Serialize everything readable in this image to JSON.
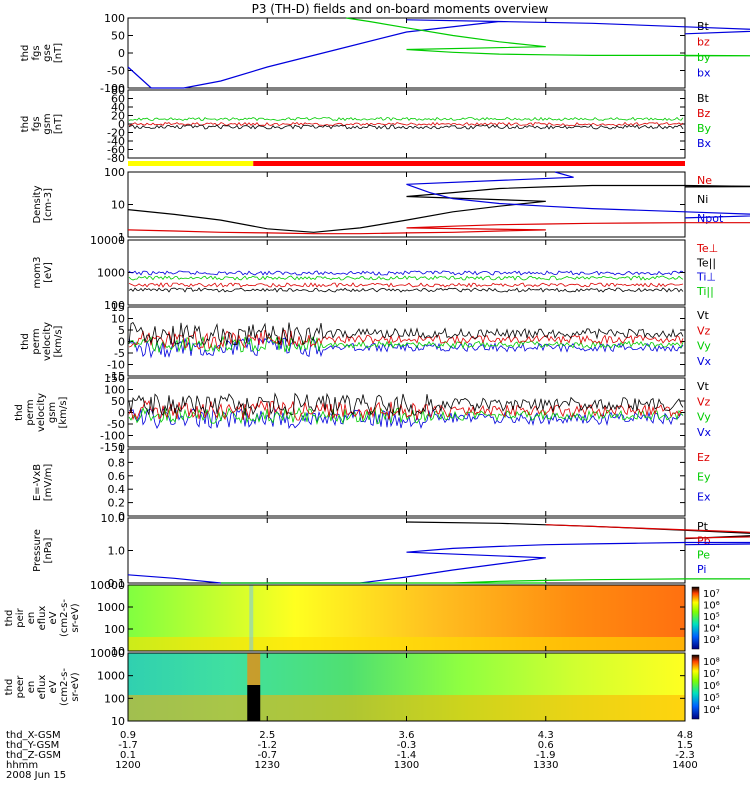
{
  "title": "P3 (TH-D) fields and on-board moments overview",
  "chart_data": [
    {
      "type": "line",
      "panel": "fgs-gse",
      "ylabel": [
        "thd",
        "fgs",
        "gse",
        "[nT]"
      ],
      "ylim": [
        -100,
        100
      ],
      "yticks": [
        100,
        50,
        0,
        -50,
        -100
      ],
      "legend": [
        {
          "name": "Bt",
          "color": "#000000"
        },
        {
          "name": "bz",
          "color": "#dd0000"
        },
        {
          "name": "by",
          "color": "#00cc00"
        },
        {
          "name": "bx",
          "color": "#0000dd"
        }
      ],
      "series": [
        {
          "name": "bx",
          "color": "#0000dd",
          "x": [
            1200,
            1205,
            1212,
            1220,
            1230,
            1245,
            1260,
            1280,
            1300,
            1320,
            1340,
            1360,
            1380,
            1400
          ],
          "y": [
            -40,
            -100,
            -100,
            -80,
            -40,
            10,
            60,
            90,
            95,
            90,
            85,
            75,
            65,
            55
          ]
        },
        {
          "name": "by",
          "color": "#00cc00",
          "x": [
            1247,
            1252,
            1260,
            1270,
            1280,
            1290,
            1300,
            1310,
            1320,
            1330,
            1340,
            1360,
            1380,
            1400
          ],
          "y": [
            100,
            90,
            72,
            50,
            32,
            18,
            10,
            2,
            -3,
            -5,
            -7,
            -7,
            -8,
            -8
          ]
        }
      ]
    },
    {
      "type": "line",
      "panel": "fgs-gsm",
      "ylabel": [
        "thd",
        "fgs",
        "gsm",
        "[nT]"
      ],
      "ylim": [
        -80,
        80
      ],
      "yticks": [
        80,
        60,
        40,
        20,
        0,
        -20,
        -40,
        -60,
        -80
      ],
      "legend": [
        {
          "name": "Bt",
          "color": "#000000"
        },
        {
          "name": "Bz",
          "color": "#dd0000"
        },
        {
          "name": "By",
          "color": "#00cc00"
        },
        {
          "name": "Bx",
          "color": "#0000dd"
        }
      ]
    },
    {
      "type": "line",
      "panel": "density",
      "ylabel": [
        "Density",
        "[cm-3]"
      ],
      "scale": "log",
      "yticks": [
        "100",
        "10",
        "1"
      ],
      "legend": [
        {
          "name": "Ne",
          "color": "#dd0000"
        },
        {
          "name": "Ni",
          "color": "#000000"
        },
        {
          "name": "Npot",
          "color": "#0000dd"
        }
      ],
      "series": [
        {
          "name": "Ni",
          "color": "#000000",
          "x": [
            1200,
            1210,
            1220,
            1230,
            1240,
            1250,
            1260,
            1270,
            1280,
            1290,
            1300,
            1310,
            1320,
            1330,
            1340,
            1350,
            1360,
            1370,
            1380,
            1390,
            1400
          ],
          "y": [
            6,
            4,
            2.5,
            1.2,
            0.9,
            1.3,
            2.5,
            5,
            8,
            12,
            18,
            25,
            35,
            40,
            45,
            45,
            45,
            43,
            42,
            42,
            40
          ]
        },
        {
          "name": "Ne",
          "color": "#dd0000",
          "x": [
            1200,
            1210,
            1220,
            1230,
            1240,
            1250,
            1260,
            1270,
            1280,
            1290,
            1300,
            1310,
            1320,
            1330,
            1340,
            1360,
            1380,
            1400
          ],
          "y": [
            1.1,
            1.0,
            0.9,
            0.85,
            0.8,
            0.8,
            0.85,
            0.9,
            1.0,
            1.1,
            1.3,
            1.5,
            1.7,
            1.8,
            1.9,
            2.0,
            2.0,
            2.0
          ]
        },
        {
          "name": "Npot",
          "color": "#0000dd",
          "x": [
            1292,
            1296,
            1300,
            1305,
            1310,
            1320,
            1330,
            1340,
            1360,
            1380,
            1400
          ],
          "y": [
            150,
            90,
            50,
            25,
            15,
            10,
            8,
            6.5,
            5,
            3.8,
            3
          ]
        }
      ]
    },
    {
      "type": "line",
      "panel": "temperature",
      "ylabel": [
        "mom3",
        "[eV]"
      ],
      "scale": "log",
      "yticks": [
        "10000",
        "1000",
        "100"
      ],
      "legend": [
        {
          "name": "Te⊥",
          "color": "#dd0000"
        },
        {
          "name": "Te||",
          "color": "#000000"
        },
        {
          "name": "Ti⊥",
          "color": "#0000dd"
        },
        {
          "name": "Ti||",
          "color": "#00cc00"
        }
      ]
    },
    {
      "type": "line",
      "panel": "eperm-velocity",
      "ylabel": [
        "thd",
        "perm",
        "velocity",
        "[km/s]"
      ],
      "ylim": [
        -15,
        15
      ],
      "yticks": [
        15,
        10,
        5,
        0,
        -5,
        -10,
        -15
      ],
      "legend": [
        {
          "name": "Vt",
          "color": "#000000"
        },
        {
          "name": "Vz",
          "color": "#dd0000"
        },
        {
          "name": "Vy",
          "color": "#00cc00"
        },
        {
          "name": "Vx",
          "color": "#0000dd"
        }
      ]
    },
    {
      "type": "line",
      "panel": "iperm-velocity",
      "ylabel": [
        "thd",
        "perm",
        "velocity",
        "gsm",
        "[km/s]"
      ],
      "ylim": [
        -150,
        150
      ],
      "yticks": [
        150,
        100,
        50,
        0,
        -50,
        -100,
        -150
      ],
      "legend": [
        {
          "name": "Vt",
          "color": "#000000"
        },
        {
          "name": "Vz",
          "color": "#dd0000"
        },
        {
          "name": "Vy",
          "color": "#00cc00"
        },
        {
          "name": "Vx",
          "color": "#0000dd"
        }
      ]
    },
    {
      "type": "line",
      "panel": "efield",
      "ylabel": [
        "E=-VxB",
        "[mV/m]"
      ],
      "ylim": [
        0,
        1
      ],
      "yticks": [
        1.0,
        0.8,
        0.6,
        0.4,
        0.2,
        0.0
      ],
      "legend": [
        {
          "name": "Ez",
          "color": "#dd0000"
        },
        {
          "name": "Ey",
          "color": "#00cc00"
        },
        {
          "name": "Ex",
          "color": "#0000dd"
        }
      ]
    },
    {
      "type": "line",
      "panel": "pressure",
      "ylabel": [
        "Pressure",
        "[nPa]"
      ],
      "scale": "log",
      "yticks": [
        "10.0",
        "1.0",
        "0.1"
      ],
      "legend": [
        {
          "name": "Pt",
          "color": "#000000"
        },
        {
          "name": "Pb",
          "color": "#dd0000"
        },
        {
          "name": "Pe",
          "color": "#00cc00"
        },
        {
          "name": "Pi",
          "color": "#0000dd"
        }
      ],
      "series": [
        {
          "name": "Pi",
          "color": "#0000dd",
          "x": [
            1200,
            1210,
            1220,
            1230,
            1235,
            1240,
            1250,
            1260,
            1270,
            1280,
            1290,
            1300,
            1310,
            1320,
            1330,
            1340,
            1350,
            1360,
            1370,
            1380,
            1390,
            1400
          ],
          "y": [
            0.12,
            0.09,
            0.06,
            0.04,
            0.035,
            0.04,
            0.06,
            0.1,
            0.18,
            0.3,
            0.5,
            0.8,
            1.1,
            1.3,
            1.5,
            1.6,
            1.7,
            1.8,
            1.8,
            1.8,
            1.7,
            1.5
          ]
        },
        {
          "name": "Pe",
          "color": "#00cc00",
          "x": [
            1220,
            1230,
            1240,
            1250,
            1260,
            1270,
            1280,
            1290,
            1300,
            1310,
            1320,
            1330,
            1340,
            1360,
            1380,
            1400
          ],
          "y": [
            0.025,
            0.024,
            0.024,
            0.026,
            0.03,
            0.035,
            0.04,
            0.045,
            0.05,
            0.06,
            0.07,
            0.075,
            0.08,
            0.085,
            0.085,
            0.085
          ]
        },
        {
          "name": "Pt",
          "color": "#000000",
          "x": [
            1300,
            1320,
            1340,
            1360,
            1380,
            1400
          ],
          "y": [
            10,
            9,
            7,
            5,
            3.5,
            2.5
          ]
        },
        {
          "name": "Pb",
          "color": "#dd0000",
          "x": [
            1330,
            1350,
            1370,
            1390,
            1400
          ],
          "y": [
            8,
            6,
            4.5,
            3.2,
            2.6
          ]
        }
      ]
    },
    {
      "type": "heatmap",
      "panel": "ion-spectrogram",
      "ylabel": [
        "thd",
        "peir",
        "en",
        "eflux",
        "eV",
        "(cm2-s-",
        "sr-eV)"
      ],
      "yticks": [
        "10000",
        "1000",
        "100",
        "10"
      ],
      "colorbar_ticks": [
        "10⁷",
        "10⁶",
        "10⁵",
        "10⁴",
        "10³"
      ]
    },
    {
      "type": "heatmap",
      "panel": "electron-spectrogram",
      "ylabel": [
        "thd",
        "peer",
        "en",
        "eflux",
        "eV",
        "(cm2-s-",
        "sr-eV)"
      ],
      "yticks": [
        "10000",
        "1000",
        "100",
        "10"
      ],
      "colorbar_ticks": [
        "10⁸",
        "10⁷",
        "10⁶",
        "10⁵",
        "10⁴"
      ]
    }
  ],
  "axis_footer": {
    "labels": [
      "thd_X-GSM",
      "thd_Y-GSM",
      "thd_Z-GSM",
      "hhmm",
      "2008 Jun 15"
    ],
    "rows": [
      [
        "0.9",
        "2.5",
        "3.6",
        "4.3",
        "4.8"
      ],
      [
        "-1.7",
        "-1.2",
        "-0.3",
        "0.6",
        "1.5"
      ],
      [
        "0.1",
        "-0.7",
        "-1.4",
        "-1.9",
        "-2.3"
      ],
      [
        "1200",
        "1230",
        "1300",
        "1330",
        "1400"
      ]
    ]
  }
}
